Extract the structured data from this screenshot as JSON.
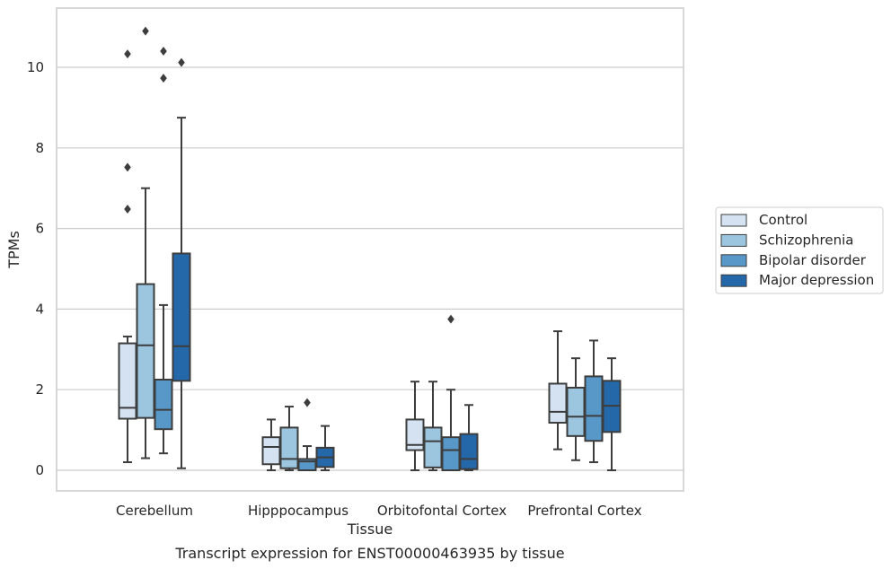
{
  "chart_data": {
    "type": "boxplot",
    "title": "",
    "caption": "Transcript expression for ENST00000463935 by tissue",
    "xlabel": "Tissue",
    "ylabel": "TPMs",
    "ylim": [
      -0.5,
      11.5
    ],
    "yticks": [
      0,
      2,
      4,
      6,
      8,
      10
    ],
    "grid": "horizontal",
    "legend_position": "right",
    "categories": [
      "Cerebellum",
      "Hipppocampus",
      "Orbitofontal Cortex",
      "Prefrontal Cortex"
    ],
    "series": [
      {
        "name": "Control",
        "color": "#d4e2f2",
        "boxes": [
          {
            "whislo": 0.2,
            "q1": 1.28,
            "med": 1.55,
            "q3": 3.15,
            "whishi": 3.32,
            "fliers": [
              7.52,
              6.48,
              10.33
            ]
          },
          {
            "whislo": 0.0,
            "q1": 0.15,
            "med": 0.58,
            "q3": 0.82,
            "whishi": 1.26,
            "fliers": []
          },
          {
            "whislo": 0.0,
            "q1": 0.5,
            "med": 0.63,
            "q3": 1.26,
            "whishi": 2.2,
            "fliers": []
          },
          {
            "whislo": 0.52,
            "q1": 1.18,
            "med": 1.45,
            "q3": 2.15,
            "whishi": 3.45,
            "fliers": []
          }
        ]
      },
      {
        "name": "Schizophrenia",
        "color": "#9cc5e0",
        "boxes": [
          {
            "whislo": 0.3,
            "q1": 1.3,
            "med": 3.1,
            "q3": 4.62,
            "whishi": 7.0,
            "fliers": [
              10.9
            ]
          },
          {
            "whislo": 0.0,
            "q1": 0.05,
            "med": 0.28,
            "q3": 1.06,
            "whishi": 1.58,
            "fliers": []
          },
          {
            "whislo": 0.0,
            "q1": 0.07,
            "med": 0.72,
            "q3": 1.06,
            "whishi": 2.2,
            "fliers": []
          },
          {
            "whislo": 0.25,
            "q1": 0.85,
            "med": 1.33,
            "q3": 2.05,
            "whishi": 2.78,
            "fliers": []
          }
        ]
      },
      {
        "name": "Bipolar disorder",
        "color": "#5798c8",
        "boxes": [
          {
            "whislo": 0.42,
            "q1": 1.02,
            "med": 1.5,
            "q3": 2.25,
            "whishi": 4.1,
            "fliers": [
              9.73,
              10.4
            ]
          },
          {
            "whislo": 0.0,
            "q1": 0.0,
            "med": 0.22,
            "q3": 0.28,
            "whishi": 0.6,
            "fliers": [
              1.68
            ]
          },
          {
            "whislo": 0.0,
            "q1": 0.0,
            "med": 0.5,
            "q3": 0.82,
            "whishi": 2.0,
            "fliers": [
              3.75
            ]
          },
          {
            "whislo": 0.2,
            "q1": 0.73,
            "med": 1.35,
            "q3": 2.33,
            "whishi": 3.22,
            "fliers": []
          }
        ]
      },
      {
        "name": "Major depression",
        "color": "#2568aa",
        "boxes": [
          {
            "whislo": 0.05,
            "q1": 2.22,
            "med": 3.08,
            "q3": 5.38,
            "whishi": 8.75,
            "fliers": [
              10.12
            ]
          },
          {
            "whislo": 0.0,
            "q1": 0.08,
            "med": 0.32,
            "q3": 0.56,
            "whishi": 1.1,
            "fliers": []
          },
          {
            "whislo": 0.0,
            "q1": 0.03,
            "med": 0.28,
            "q3": 0.9,
            "whishi": 1.62,
            "fliers": []
          },
          {
            "whislo": 0.0,
            "q1": 0.95,
            "med": 1.6,
            "q3": 2.22,
            "whishi": 2.78,
            "fliers": []
          }
        ]
      }
    ]
  }
}
